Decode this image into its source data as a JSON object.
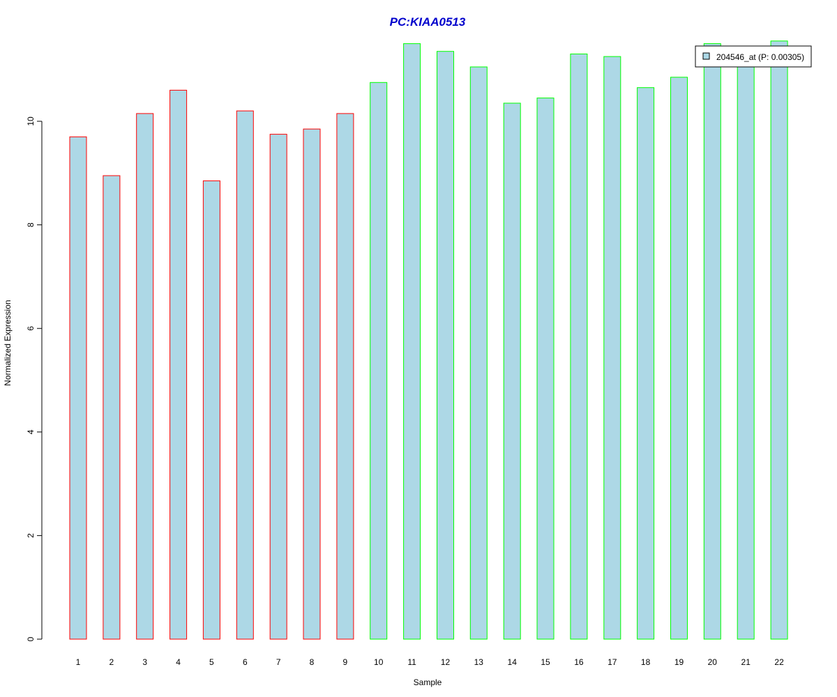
{
  "chart_data": {
    "type": "bar",
    "title": "PC:KIAA0513",
    "xlabel": "Sample",
    "ylabel": "Normalized Expression",
    "categories": [
      "1",
      "2",
      "3",
      "4",
      "5",
      "6",
      "7",
      "8",
      "9",
      "10",
      "11",
      "12",
      "13",
      "14",
      "15",
      "16",
      "17",
      "18",
      "19",
      "20",
      "21",
      "22"
    ],
    "values": [
      9.7,
      8.95,
      10.15,
      10.6,
      8.85,
      10.2,
      9.75,
      9.85,
      10.15,
      10.75,
      11.5,
      11.35,
      11.05,
      10.35,
      10.45,
      11.3,
      11.25,
      10.65,
      10.85,
      11.5,
      11.35,
      11.55
    ],
    "border_colors": [
      "#ff0000",
      "#ff0000",
      "#ff0000",
      "#ff0000",
      "#ff0000",
      "#ff0000",
      "#ff0000",
      "#ff0000",
      "#ff0000",
      "#00ff00",
      "#00ff00",
      "#00ff00",
      "#00ff00",
      "#00ff00",
      "#00ff00",
      "#00ff00",
      "#00ff00",
      "#00ff00",
      "#00ff00",
      "#00ff00",
      "#00ff00",
      "#00ff00"
    ],
    "fill_color": "#add8e6",
    "title_color": "#0000cc",
    "yticks": [
      0,
      2,
      4,
      6,
      8,
      10
    ],
    "ylim": [
      0,
      11.6
    ],
    "grid": false,
    "legend": {
      "placement": "top-right",
      "entries": [
        {
          "label": "204546_at (P: 0.00305)",
          "color": "#add8e6"
        }
      ]
    }
  }
}
